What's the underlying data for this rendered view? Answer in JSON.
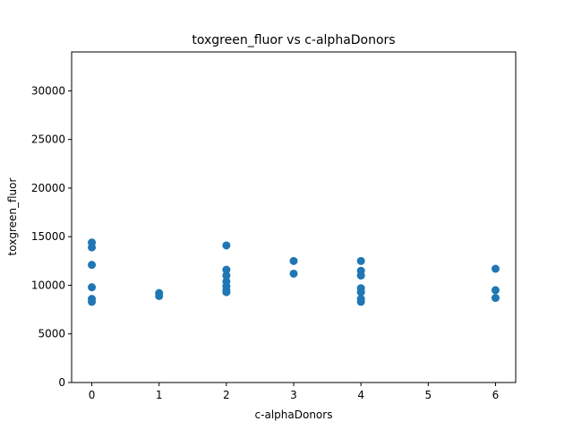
{
  "chart_data": {
    "type": "scatter",
    "title": "toxgreen_fluor vs c-alphaDonors",
    "xlabel": "c-alphaDonors",
    "ylabel": "toxgreen_fluor",
    "xlim": [
      -0.3,
      6.3
    ],
    "ylim": [
      0,
      34000
    ],
    "xticks": [
      0,
      1,
      2,
      3,
      4,
      5,
      6
    ],
    "yticks": [
      0,
      5000,
      10000,
      15000,
      20000,
      25000,
      30000
    ],
    "grid": false,
    "marker_color": "#1f77b4",
    "points": [
      {
        "x": 0,
        "y": 14400
      },
      {
        "x": 0,
        "y": 13900
      },
      {
        "x": 0,
        "y": 12100
      },
      {
        "x": 0,
        "y": 9800
      },
      {
        "x": 0,
        "y": 8600
      },
      {
        "x": 0,
        "y": 8300
      },
      {
        "x": 1,
        "y": 9200
      },
      {
        "x": 1,
        "y": 8900
      },
      {
        "x": 2,
        "y": 14100
      },
      {
        "x": 2,
        "y": 11600
      },
      {
        "x": 2,
        "y": 11000
      },
      {
        "x": 2,
        "y": 10400
      },
      {
        "x": 2,
        "y": 9900
      },
      {
        "x": 2,
        "y": 9500
      },
      {
        "x": 2,
        "y": 9300
      },
      {
        "x": 3,
        "y": 12500
      },
      {
        "x": 3,
        "y": 11200
      },
      {
        "x": 4,
        "y": 12500
      },
      {
        "x": 4,
        "y": 11500
      },
      {
        "x": 4,
        "y": 11000
      },
      {
        "x": 4,
        "y": 9700
      },
      {
        "x": 4,
        "y": 9300
      },
      {
        "x": 4,
        "y": 8600
      },
      {
        "x": 4,
        "y": 8300
      },
      {
        "x": 6,
        "y": 11700
      },
      {
        "x": 6,
        "y": 9500
      },
      {
        "x": 6,
        "y": 8700
      }
    ]
  }
}
